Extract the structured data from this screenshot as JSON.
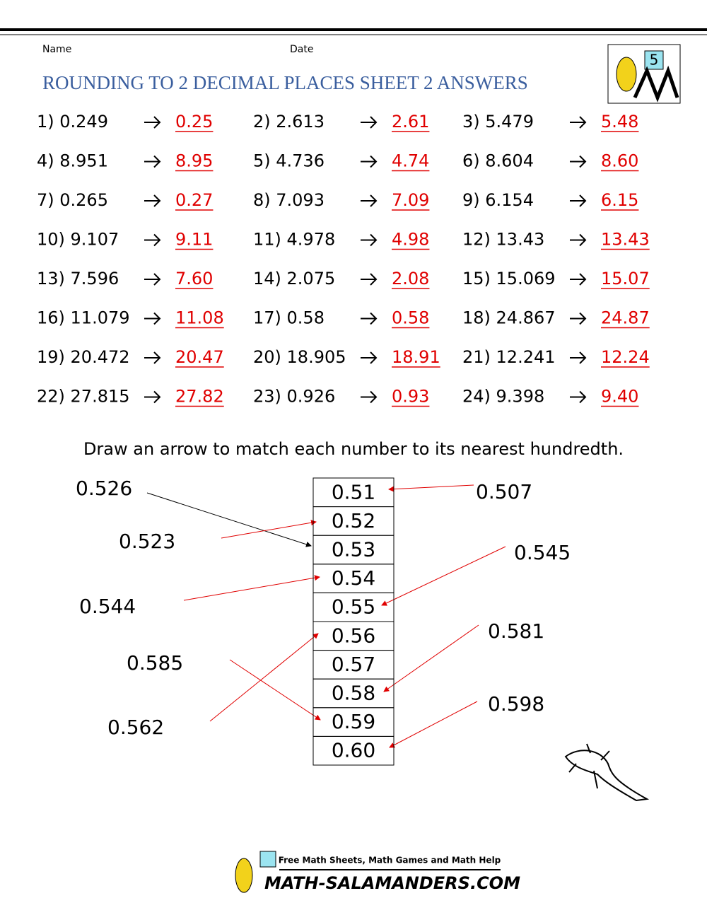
{
  "header": {
    "name_label": "Name",
    "date_label": "Date",
    "title": "ROUNDING TO 2 DECIMAL PLACES SHEET 2 ANSWERS",
    "logo_number": "5"
  },
  "problems": [
    {
      "label": "1) 0.249",
      "answer": "0.25"
    },
    {
      "label": "2) 2.613",
      "answer": "2.61"
    },
    {
      "label": "3) 5.479",
      "answer": "5.48"
    },
    {
      "label": "4) 8.951",
      "answer": "8.95"
    },
    {
      "label": "5) 4.736",
      "answer": "4.74"
    },
    {
      "label": "6) 8.604",
      "answer": "8.60"
    },
    {
      "label": "7) 0.265",
      "answer": "0.27"
    },
    {
      "label": "8) 7.093",
      "answer": "7.09"
    },
    {
      "label": "9) 6.154",
      "answer": "6.15"
    },
    {
      "label": "10) 9.107",
      "answer": "9.11"
    },
    {
      "label": "11) 4.978",
      "answer": "4.98"
    },
    {
      "label": "12) 13.43",
      "answer": "13.43"
    },
    {
      "label": "13) 7.596",
      "answer": "7.60"
    },
    {
      "label": "14) 2.075",
      "answer": "2.08"
    },
    {
      "label": "15) 15.069",
      "answer": "15.07"
    },
    {
      "label": "16) 11.079",
      "answer": "11.08"
    },
    {
      "label": "17) 0.58",
      "answer": "0.58"
    },
    {
      "label": "18) 24.867",
      "answer": "24.87"
    },
    {
      "label": "19) 20.472",
      "answer": "20.47"
    },
    {
      "label": "20) 18.905",
      "answer": "18.91"
    },
    {
      "label": "21) 12.241",
      "answer": "12.24"
    },
    {
      "label": "22) 27.815",
      "answer": "27.82"
    },
    {
      "label": "23) 0.926",
      "answer": "0.93"
    },
    {
      "label": "24) 9.398",
      "answer": "9.40"
    }
  ],
  "instructions": "Draw an arrow to match each number to its nearest hundredth.",
  "matching": {
    "left": [
      "0.526",
      "0.523",
      "0.544",
      "0.585",
      "0.562"
    ],
    "right": [
      "0.507",
      "0.545",
      "0.581",
      "0.598"
    ],
    "column": [
      "0.51",
      "0.52",
      "0.53",
      "0.54",
      "0.55",
      "0.56",
      "0.57",
      "0.58",
      "0.59",
      "0.60"
    ]
  },
  "footer": {
    "tagline": "Free Math Sheets, Math Games and Math Help",
    "site": "MATH-SALAMANDERS.COM"
  }
}
